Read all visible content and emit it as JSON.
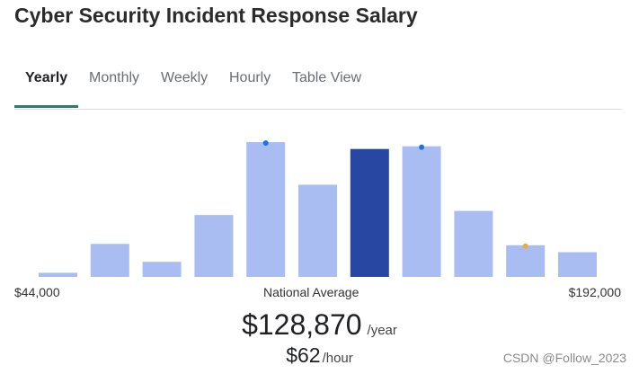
{
  "page": {
    "title": "Cyber Security Incident Response Salary",
    "watermark": "CSDN @Follow_2023"
  },
  "tabs": [
    {
      "label": "Yearly",
      "active": true
    },
    {
      "label": "Monthly",
      "active": false
    },
    {
      "label": "Weekly",
      "active": false
    },
    {
      "label": "Hourly",
      "active": false
    },
    {
      "label": "Table View",
      "active": false
    }
  ],
  "salary": {
    "min_label": "$44,000",
    "max_label": "$192,000",
    "average_label": "National Average",
    "yearly_amount": "$128,870",
    "yearly_unit": "/year",
    "hourly_amount": "$62",
    "hourly_unit": "/hour"
  },
  "chart_data": {
    "type": "bar",
    "title": "",
    "xlabel": "",
    "ylabel": "",
    "x_range_labels": [
      "$44,000",
      "$192,000"
    ],
    "values": [
      3,
      24,
      11,
      45,
      98,
      67,
      93,
      95,
      48,
      23,
      18
    ],
    "ylim": [
      0,
      100
    ],
    "highlight_index": 6,
    "markers": [
      {
        "bar_index": 4,
        "color": "#1a73e8"
      },
      {
        "bar_index": 7,
        "color": "#1a73e8"
      },
      {
        "bar_index": 9,
        "color": "#f4a93a"
      }
    ],
    "grid": false,
    "colors": {
      "bar": "#a9bdf3",
      "highlight": "#2847a3"
    }
  }
}
